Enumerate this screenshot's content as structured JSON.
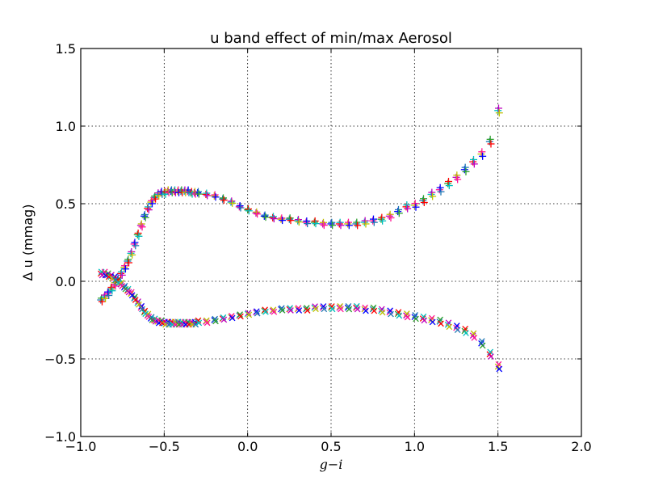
{
  "chart_data": {
    "type": "scatter",
    "title": "u band effect of min/max Aerosol",
    "xlabel": "g−i",
    "ylabel": "Δ u (mmag)",
    "xlim": [
      -1.0,
      2.0
    ],
    "ylim": [
      -1.0,
      1.5
    ],
    "xticks": [
      -1.0,
      -0.5,
      0.0,
      0.5,
      1.0,
      1.5,
      2.0
    ],
    "yticks": [
      -1.0,
      -0.5,
      0.0,
      0.5,
      1.0,
      1.5
    ],
    "xtick_labels": [
      "−1.0",
      "−0.5",
      "0.0",
      "0.5",
      "1.0",
      "1.5",
      "2.0"
    ],
    "ytick_labels": [
      "−1.0",
      "−0.5",
      "0.0",
      "0.5",
      "1.0",
      "1.5"
    ],
    "grid": true,
    "colors": [
      "#1f77b4",
      "#2ca02c",
      "#ff0000",
      "#00bfbf",
      "#bf00bf",
      "#bfbf00",
      "#ff1493",
      "#0000ff"
    ],
    "series": [
      {
        "marker": "plus",
        "x": [
          -0.88,
          -0.86,
          -0.84,
          -0.82,
          -0.8,
          -0.78,
          -0.76,
          -0.74,
          -0.72,
          -0.7,
          -0.68,
          -0.66,
          -0.64,
          -0.62,
          -0.6,
          -0.58,
          -0.56,
          -0.54,
          -0.52,
          -0.5,
          -0.48,
          -0.46,
          -0.44,
          -0.42,
          -0.4,
          -0.38,
          -0.36,
          -0.34,
          -0.32,
          -0.3,
          -0.25,
          -0.2,
          -0.15,
          -0.1,
          -0.05,
          0.0,
          0.05,
          0.1,
          0.15,
          0.2,
          0.25,
          0.3,
          0.35,
          0.4,
          0.45,
          0.5,
          0.55,
          0.6,
          0.65,
          0.7,
          0.75,
          0.8,
          0.85,
          0.9,
          0.95,
          1.0,
          1.05,
          1.1,
          1.15,
          1.2,
          1.25,
          1.3,
          1.35,
          1.4,
          1.45,
          1.5
        ],
        "y": [
          -0.12,
          -0.1,
          -0.08,
          -0.05,
          -0.02,
          0.01,
          0.05,
          0.09,
          0.13,
          0.18,
          0.24,
          0.3,
          0.36,
          0.42,
          0.47,
          0.51,
          0.54,
          0.56,
          0.57,
          0.57,
          0.58,
          0.58,
          0.58,
          0.58,
          0.58,
          0.58,
          0.58,
          0.57,
          0.57,
          0.57,
          0.56,
          0.55,
          0.53,
          0.51,
          0.48,
          0.46,
          0.44,
          0.42,
          0.41,
          0.4,
          0.4,
          0.39,
          0.38,
          0.38,
          0.37,
          0.37,
          0.37,
          0.37,
          0.37,
          0.38,
          0.39,
          0.4,
          0.42,
          0.45,
          0.48,
          0.49,
          0.52,
          0.56,
          0.59,
          0.63,
          0.67,
          0.72,
          0.77,
          0.82,
          0.9,
          1.1
        ]
      },
      {
        "marker": "cross",
        "x": [
          -0.88,
          -0.86,
          -0.84,
          -0.82,
          -0.8,
          -0.78,
          -0.76,
          -0.74,
          -0.72,
          -0.7,
          -0.68,
          -0.66,
          -0.64,
          -0.62,
          -0.6,
          -0.58,
          -0.56,
          -0.54,
          -0.52,
          -0.5,
          -0.48,
          -0.46,
          -0.44,
          -0.42,
          -0.4,
          -0.38,
          -0.36,
          -0.34,
          -0.32,
          -0.3,
          -0.25,
          -0.2,
          -0.15,
          -0.1,
          -0.05,
          0.0,
          0.05,
          0.1,
          0.15,
          0.2,
          0.25,
          0.3,
          0.35,
          0.4,
          0.45,
          0.5,
          0.55,
          0.6,
          0.65,
          0.7,
          0.75,
          0.8,
          0.85,
          0.9,
          0.95,
          1.0,
          1.05,
          1.1,
          1.15,
          1.2,
          1.25,
          1.3,
          1.35,
          1.4,
          1.45,
          1.5
        ],
        "y": [
          0.05,
          0.05,
          0.04,
          0.03,
          0.02,
          0.0,
          -0.02,
          -0.04,
          -0.06,
          -0.08,
          -0.11,
          -0.14,
          -0.17,
          -0.2,
          -0.22,
          -0.24,
          -0.25,
          -0.26,
          -0.26,
          -0.27,
          -0.27,
          -0.27,
          -0.27,
          -0.27,
          -0.27,
          -0.27,
          -0.27,
          -0.27,
          -0.27,
          -0.26,
          -0.26,
          -0.25,
          -0.24,
          -0.23,
          -0.22,
          -0.21,
          -0.2,
          -0.19,
          -0.19,
          -0.18,
          -0.18,
          -0.18,
          -0.18,
          -0.17,
          -0.17,
          -0.17,
          -0.17,
          -0.17,
          -0.17,
          -0.18,
          -0.18,
          -0.19,
          -0.2,
          -0.21,
          -0.22,
          -0.23,
          -0.24,
          -0.25,
          -0.26,
          -0.28,
          -0.3,
          -0.32,
          -0.35,
          -0.4,
          -0.47,
          -0.55
        ]
      }
    ]
  }
}
